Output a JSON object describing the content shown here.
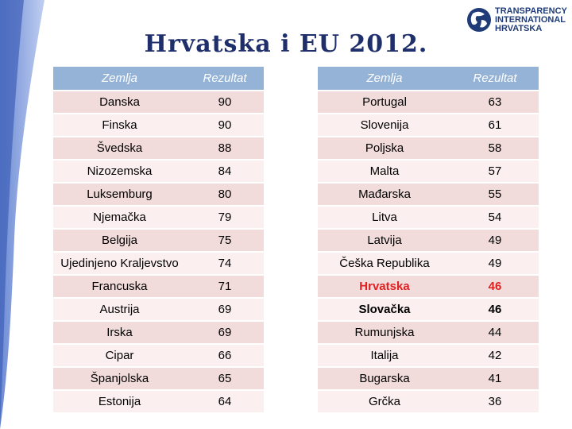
{
  "title": "Hrvatska i EU 2012.",
  "logo": {
    "line1": "TRANSPARENCY",
    "line2": "INTERNATIONAL",
    "line3": "HRVATSKA",
    "icon": "globe-icon",
    "color": "#1f3c78"
  },
  "colors": {
    "header": "#95b3d7",
    "row_dark": "#f2dcdb",
    "row_light": "#fbf0ef",
    "highlight": "#e02020",
    "title": "#1f2f6b"
  },
  "left_table": {
    "headers": [
      "Zemlja",
      "Rezultat"
    ],
    "rows": [
      {
        "country": "Danska",
        "score": "90"
      },
      {
        "country": "Finska",
        "score": "90"
      },
      {
        "country": "Švedska",
        "score": "88"
      },
      {
        "country": "Nizozemska",
        "score": "84"
      },
      {
        "country": "Luksemburg",
        "score": "80"
      },
      {
        "country": "Njemačka",
        "score": "79"
      },
      {
        "country": "Belgija",
        "score": "75"
      },
      {
        "country": "Ujedinjeno Kraljevstvo",
        "score": "74"
      },
      {
        "country": "Francuska",
        "score": "71"
      },
      {
        "country": "Austrija",
        "score": "69"
      },
      {
        "country": "Irska",
        "score": "69"
      },
      {
        "country": "Cipar",
        "score": "66"
      },
      {
        "country": "Španjolska",
        "score": "65"
      },
      {
        "country": "Estonija",
        "score": "64"
      }
    ]
  },
  "right_table": {
    "headers": [
      "Zemlja",
      "Rezultat"
    ],
    "rows": [
      {
        "country": "Portugal",
        "score": "63"
      },
      {
        "country": "Slovenija",
        "score": "61"
      },
      {
        "country": "Poljska",
        "score": "58"
      },
      {
        "country": "Malta",
        "score": "57"
      },
      {
        "country": "Mađarska",
        "score": "55"
      },
      {
        "country": "Litva",
        "score": "54"
      },
      {
        "country": "Latvija",
        "score": "49"
      },
      {
        "country": "Češka Republika",
        "score": "49"
      },
      {
        "country": "Hrvatska",
        "score": "46",
        "highlight": true
      },
      {
        "country": "Slovačka",
        "score": "46",
        "bold": true
      },
      {
        "country": "Rumunjska",
        "score": "44"
      },
      {
        "country": "Italija",
        "score": "42"
      },
      {
        "country": "Bugarska",
        "score": "41"
      },
      {
        "country": "Grčka",
        "score": "36"
      }
    ]
  }
}
